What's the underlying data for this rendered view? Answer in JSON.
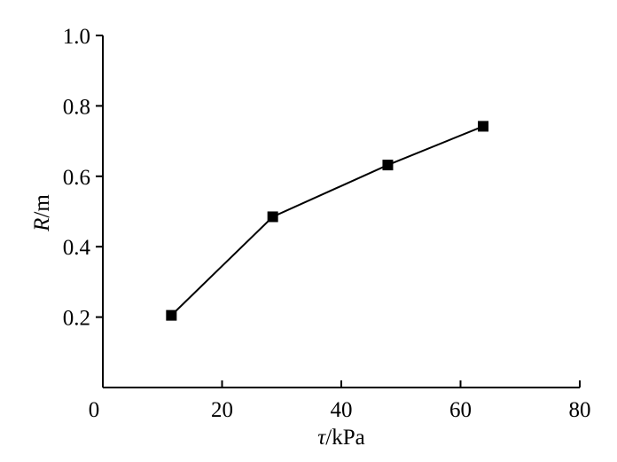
{
  "chart_data": {
    "type": "line",
    "title": "",
    "xlabel": {
      "symbol": "τ",
      "unit": "/kPa"
    },
    "ylabel": {
      "symbol": "R",
      "unit": "/m"
    },
    "xlim": [
      0,
      80
    ],
    "ylim": [
      0,
      1.0
    ],
    "xticks": [
      0,
      20,
      40,
      60,
      80
    ],
    "xtick_labels": [
      "0",
      "20",
      "40",
      "60",
      "80"
    ],
    "yticks": [
      0.2,
      0.4,
      0.6,
      0.8,
      1.0
    ],
    "ytick_labels": [
      "0.2",
      "0.4",
      "0.6",
      "0.8",
      "1.0"
    ],
    "grid": false,
    "legend": "none",
    "series": [
      {
        "marker": "square",
        "color": "#000000",
        "x": [
          11.5,
          28.5,
          47.8,
          63.8
        ],
        "y": [
          0.205,
          0.485,
          0.632,
          0.742
        ]
      }
    ]
  }
}
